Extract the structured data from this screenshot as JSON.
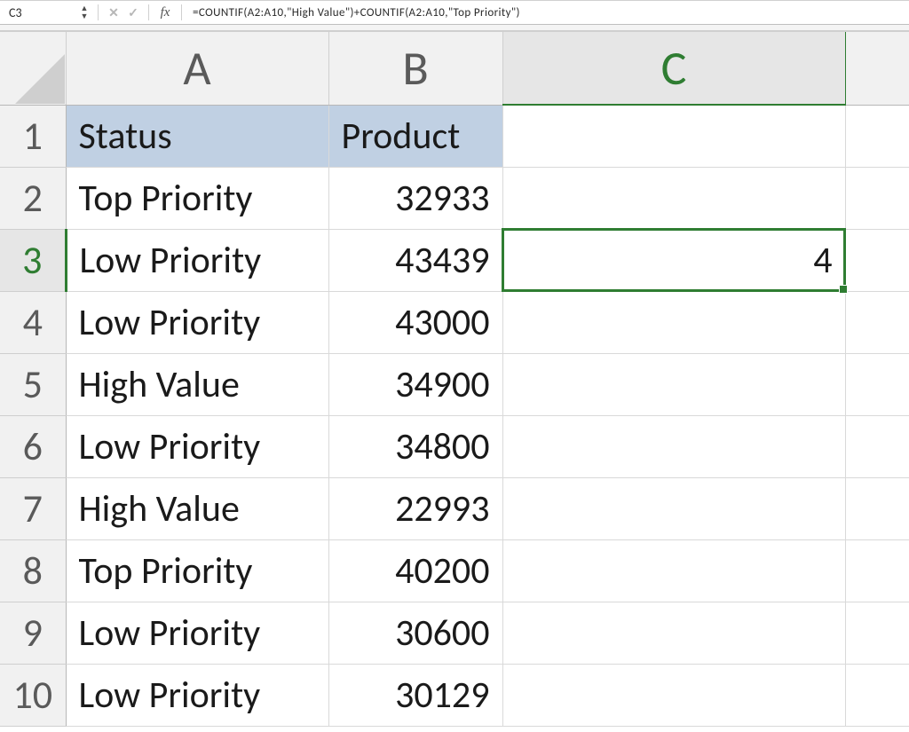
{
  "formula_bar": {
    "cell_reference": "C3",
    "cancel_glyph": "✕",
    "confirm_glyph": "✓",
    "fx_label": "fx",
    "formula": "=COUNTIF(A2:A10,\"High Value\")+COUNTIF(A2:A10,\"Top Priority\")"
  },
  "grid": {
    "column_headers": [
      "A",
      "B",
      "C"
    ],
    "selected_column_index": 2,
    "row_headers": [
      "1",
      "2",
      "3",
      "4",
      "5",
      "6",
      "7",
      "8",
      "9",
      "10"
    ],
    "selected_row_index": 2,
    "selected_cell": "C3",
    "header_row_bg": "#c0d0e3",
    "selection_color": "#2f7d32",
    "gridline_color": "#d9d9d9",
    "header_bg": "#f1f1f1",
    "data": {
      "headers": {
        "A": "Status",
        "B": "Product"
      },
      "rows": [
        {
          "A": "Top Priority",
          "B": "32933"
        },
        {
          "A": "Low Priority",
          "B": "43439",
          "C": "4"
        },
        {
          "A": "Low Priority",
          "B": "43000"
        },
        {
          "A": "High Value",
          "B": "34900"
        },
        {
          "A": "Low Priority",
          "B": "34800"
        },
        {
          "A": "High Value",
          "B": "22993"
        },
        {
          "A": "Top Priority",
          "B": "40200"
        },
        {
          "A": "Low Priority",
          "B": "30600"
        },
        {
          "A": "Low Priority",
          "B": "30129"
        }
      ]
    }
  }
}
